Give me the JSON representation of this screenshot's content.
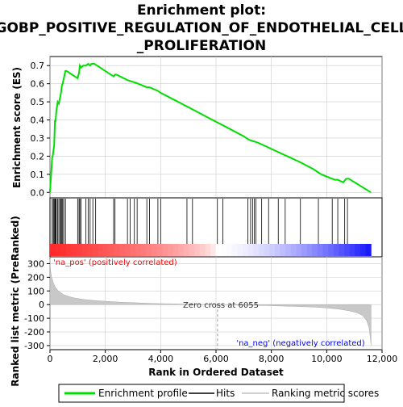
{
  "title_lines": [
    "Enrichment plot:",
    "GOBP_POSITIVE_REGULATION_OF_ENDOTHELIAL_CELL",
    "_PROLIFERATION"
  ],
  "es_ylabel": "Enrichment score (ES)",
  "rank_ylabel_lines": [
    "Ranked list metric (PreRanked)"
  ],
  "xlabel": "Rank in Ordered Dataset",
  "pos_label": "'na_pos' (positively correlated)",
  "neg_label": "'na_neg' (negatively correlated)",
  "zero_cross_label": "Zero cross at 6055",
  "legend": {
    "enrichment": "Enrichment profile",
    "hits": "Hits",
    "ranking": "Ranking metric scores"
  },
  "colors": {
    "enrichment_line": "#00dd00",
    "pos_label": "#ff0000",
    "neg_label": "#0000ff",
    "grid": "#cccccc"
  },
  "chart_data": {
    "type": "line",
    "x_range": [
      0,
      12000
    ],
    "x_ticks": [
      0,
      2000,
      4000,
      6000,
      8000,
      10000,
      12000
    ],
    "x_tick_labels": [
      "0",
      "2,000",
      "4,000",
      "6,000",
      "8,000",
      "10,000",
      "12,000"
    ],
    "n_genes": 11600,
    "zero_cross": 6055,
    "es": {
      "ylim": [
        -0.03,
        0.75
      ],
      "y_ticks": [
        0.0,
        0.1,
        0.2,
        0.3,
        0.4,
        0.5,
        0.6,
        0.7
      ],
      "y_tick_labels": [
        "0.0",
        "0.1",
        "0.2",
        "0.3",
        "0.4",
        "0.5",
        "0.6",
        "0.7"
      ],
      "x": [
        0,
        80,
        100,
        150,
        180,
        200,
        230,
        280,
        320,
        360,
        400,
        430,
        460,
        500,
        560,
        600,
        1000,
        1050,
        1080,
        1120,
        1200,
        1300,
        1380,
        1450,
        1500,
        1600,
        1700,
        2300,
        2350,
        2400,
        2800,
        3000,
        3100,
        3500,
        3600,
        3900,
        4000,
        4500,
        5000,
        5500,
        6000,
        6500,
        7000,
        7200,
        7300,
        7400,
        7500,
        7800,
        8000,
        8500,
        9000,
        9500,
        9700,
        9800,
        10200,
        10300,
        10400,
        10600,
        10700,
        10800,
        11600
      ],
      "y": [
        0.0,
        0.19,
        0.2,
        0.26,
        0.4,
        0.39,
        0.45,
        0.5,
        0.49,
        0.52,
        0.55,
        0.59,
        0.6,
        0.63,
        0.67,
        0.67,
        0.63,
        0.66,
        0.7,
        0.69,
        0.7,
        0.7,
        0.71,
        0.7,
        0.71,
        0.71,
        0.7,
        0.64,
        0.65,
        0.65,
        0.62,
        0.61,
        0.605,
        0.58,
        0.58,
        0.56,
        0.55,
        0.51,
        0.47,
        0.43,
        0.39,
        0.35,
        0.31,
        0.29,
        0.285,
        0.28,
        0.275,
        0.255,
        0.24,
        0.205,
        0.17,
        0.13,
        0.11,
        0.1,
        0.075,
        0.07,
        0.07,
        0.055,
        0.075,
        0.075,
        0.0
      ]
    },
    "hits": [
      80,
      120,
      150,
      180,
      200,
      230,
      280,
      320,
      360,
      400,
      430,
      460,
      500,
      560,
      1000,
      1050,
      1080,
      1120,
      1300,
      1380,
      1450,
      1550,
      1650,
      2300,
      2350,
      2800,
      2900,
      3050,
      3150,
      3500,
      3600,
      3900,
      4000,
      4950,
      5150,
      6050,
      6250,
      7150,
      7250,
      7320,
      7380,
      7440,
      7650,
      7900,
      8250,
      8500,
      9050,
      9700,
      10200,
      10400,
      10650,
      10750
    ],
    "ranking": {
      "ylim": [
        -330,
        350
      ],
      "y_ticks": [
        -300,
        -200,
        -100,
        0,
        100,
        200,
        300
      ],
      "y_tick_labels": [
        "-300",
        "-200",
        "-100",
        "0",
        "100",
        "200",
        "300"
      ],
      "x": [
        0,
        20,
        60,
        120,
        200,
        300,
        400,
        500,
        700,
        900,
        1200,
        1600,
        2000,
        2500,
        3000,
        3500,
        4000,
        4500,
        5000,
        5500,
        6055,
        6500,
        7000,
        7500,
        8000,
        8500,
        9000,
        9500,
        10000,
        10400,
        10800,
        11100,
        11300,
        11450,
        11530,
        11580,
        11600
      ],
      "values": [
        330,
        250,
        200,
        160,
        125,
        100,
        85,
        72,
        58,
        48,
        38,
        30,
        24,
        18,
        14,
        10,
        7,
        5,
        3,
        1,
        0,
        -2,
        -4,
        -6,
        -8,
        -11,
        -14,
        -18,
        -24,
        -32,
        -45,
        -60,
        -80,
        -120,
        -170,
        -250,
        -300
      ]
    }
  }
}
